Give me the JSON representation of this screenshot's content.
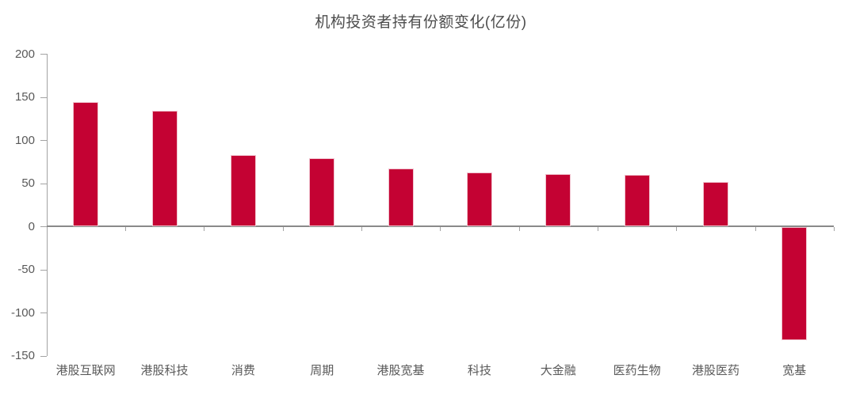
{
  "page": {
    "background": "#ffffff"
  },
  "chart_data": {
    "type": "bar",
    "title": "机构投资者持有份额变化(亿份)",
    "categories": [
      "港股互联网",
      "港股科技",
      "消费",
      "周期",
      "港股宽基",
      "科技",
      "大金融",
      "医药生物",
      "港股医药",
      "宽基"
    ],
    "values": [
      144,
      134,
      83,
      79,
      67,
      62,
      61,
      60,
      51,
      -131
    ],
    "xlabel": "",
    "ylabel": "",
    "ylim": [
      -150,
      200
    ],
    "yticks": [
      200,
      150,
      100,
      50,
      0,
      -50,
      -100,
      -150
    ],
    "grid": false,
    "legend": "none",
    "colors": {
      "bar_fill": "#C40233",
      "bar_edge": "#F0C2CE",
      "axis_line": "#A3A3A3",
      "zero_line": "#8A8A8A",
      "tick": "#A3A3A3",
      "axis_label": "#595959",
      "title": "#4D4D4D"
    }
  }
}
